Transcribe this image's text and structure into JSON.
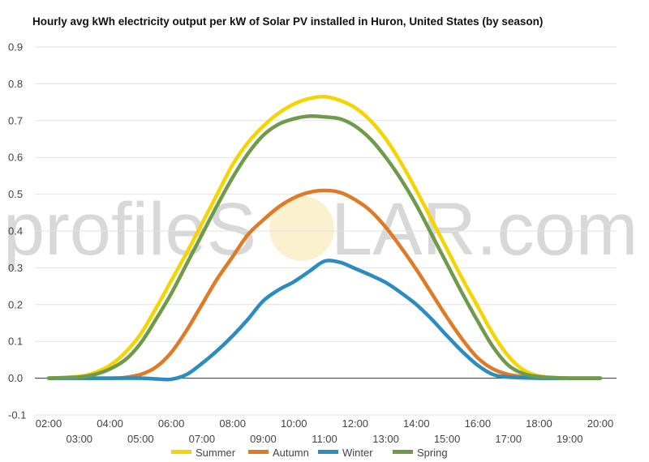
{
  "chart_data": {
    "type": "line",
    "title": "Hourly avg kWh electricity output per kW of Solar PV installed in Huron, United States (by season)",
    "xlabel": "",
    "ylabel": "",
    "ylim": [
      -0.1,
      0.9
    ],
    "yticks": [
      "0.9",
      "0.8",
      "0.7",
      "0.6",
      "0.5",
      "0.4",
      "0.3",
      "0.2",
      "0.1",
      "0.0",
      "-0.1"
    ],
    "x_hours": [
      2,
      3,
      4,
      5,
      6,
      7,
      8,
      9,
      10,
      11,
      12,
      13,
      14,
      15,
      16,
      17,
      18,
      19,
      20
    ],
    "x_labels": [
      "02:00",
      "03:00",
      "04:00",
      "05:00",
      "06:00",
      "07:00",
      "08:00",
      "09:00",
      "10:00",
      "11:00",
      "12:00",
      "13:00",
      "14:00",
      "15:00",
      "16:00",
      "17:00",
      "18:00",
      "19:00",
      "20:00"
    ],
    "grid": true,
    "legend_position": "bottom",
    "watermark": {
      "left": "profileS",
      "right": "LAR.com"
    },
    "series": [
      {
        "name": "Summer",
        "color": "#f5d400",
        "x": [
          2,
          3,
          3.5,
          4,
          4.5,
          5,
          5.5,
          6,
          6.5,
          7,
          7.5,
          8,
          8.5,
          9,
          9.5,
          10,
          10.5,
          11,
          11.5,
          12,
          12.5,
          13,
          13.5,
          14,
          14.5,
          15,
          15.5,
          16,
          16.5,
          17,
          17.5,
          18,
          18.5,
          19,
          20
        ],
        "y": [
          0.0,
          0.005,
          0.015,
          0.035,
          0.07,
          0.12,
          0.19,
          0.265,
          0.34,
          0.42,
          0.5,
          0.58,
          0.64,
          0.685,
          0.72,
          0.745,
          0.76,
          0.765,
          0.755,
          0.735,
          0.7,
          0.65,
          0.585,
          0.51,
          0.43,
          0.35,
          0.27,
          0.195,
          0.12,
          0.06,
          0.022,
          0.006,
          0.002,
          0.0,
          0.0
        ]
      },
      {
        "name": "Autumn",
        "color": "#e07a24",
        "x": [
          2,
          3,
          4,
          4.5,
          5,
          5.5,
          6,
          6.5,
          7,
          7.5,
          8,
          8.5,
          9,
          9.5,
          10,
          10.5,
          11,
          11.5,
          12,
          12.5,
          13,
          13.5,
          14,
          14.5,
          15,
          15.5,
          16,
          16.5,
          17,
          17.5,
          18,
          18.5,
          19,
          20
        ],
        "y": [
          0.0,
          0.0,
          0.0,
          0.002,
          0.01,
          0.03,
          0.07,
          0.13,
          0.2,
          0.27,
          0.33,
          0.39,
          0.43,
          0.465,
          0.49,
          0.505,
          0.51,
          0.505,
          0.485,
          0.455,
          0.41,
          0.355,
          0.295,
          0.23,
          0.165,
          0.105,
          0.055,
          0.025,
          0.01,
          0.004,
          0.001,
          0.0,
          0.0,
          0.0
        ]
      },
      {
        "name": "Winter",
        "color": "#2b8cc0",
        "x": [
          2,
          3,
          4,
          5,
          5.5,
          6,
          6.5,
          7,
          7.5,
          8,
          8.5,
          9,
          9.5,
          10,
          10.5,
          11,
          11.5,
          12,
          12.5,
          13,
          13.5,
          14,
          14.5,
          15,
          15.5,
          16,
          16.5,
          17,
          18,
          19,
          20
        ],
        "y": [
          0.0,
          0.0,
          0.0,
          0.0,
          -0.002,
          -0.003,
          0.01,
          0.04,
          0.075,
          0.115,
          0.16,
          0.21,
          0.24,
          0.262,
          0.29,
          0.318,
          0.315,
          0.298,
          0.28,
          0.26,
          0.232,
          0.2,
          0.16,
          0.115,
          0.072,
          0.035,
          0.01,
          0.003,
          0.0,
          0.0,
          0.0
        ]
      },
      {
        "name": "Spring",
        "color": "#6f9a4c",
        "x": [
          2,
          3,
          3.5,
          4,
          4.5,
          5,
          5.5,
          6,
          6.5,
          7,
          7.5,
          8,
          8.5,
          9,
          9.5,
          10,
          10.5,
          11,
          11.5,
          12,
          12.5,
          13,
          13.5,
          14,
          14.5,
          15,
          15.5,
          16,
          16.5,
          17,
          17.5,
          18,
          18.5,
          19,
          20
        ],
        "y": [
          0.0,
          0.003,
          0.01,
          0.025,
          0.05,
          0.095,
          0.16,
          0.23,
          0.31,
          0.39,
          0.47,
          0.545,
          0.61,
          0.66,
          0.69,
          0.705,
          0.712,
          0.71,
          0.705,
          0.685,
          0.65,
          0.6,
          0.54,
          0.47,
          0.39,
          0.31,
          0.23,
          0.155,
          0.085,
          0.035,
          0.012,
          0.004,
          0.001,
          0.0,
          0.0
        ]
      }
    ]
  }
}
